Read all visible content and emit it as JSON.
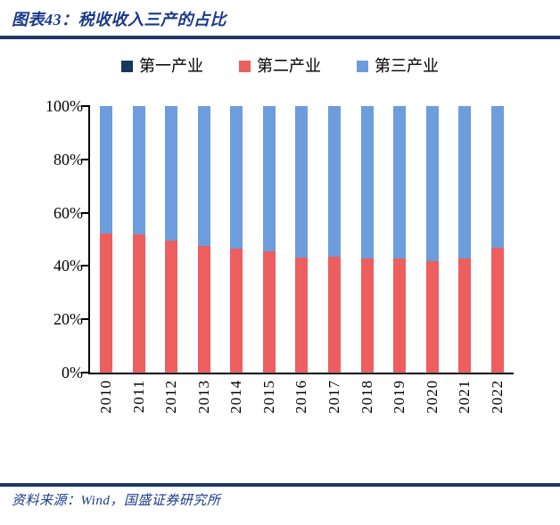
{
  "page": {
    "title": "图表43：税收收入三产的占比",
    "source": "资料来源：Wind，国盛证券研究所"
  },
  "colors": {
    "title_text": "#1b3a8c",
    "rule": "#1f3864",
    "axis": "#000000",
    "primary": "#17375e",
    "secondary": "#ed5e5e",
    "tertiary": "#6d9ddc"
  },
  "legend": {
    "items": [
      {
        "label": "第一产业",
        "color": "#17375e"
      },
      {
        "label": "第二产业",
        "color": "#ed5e5e"
      },
      {
        "label": "第三产业",
        "color": "#6d9ddc"
      }
    ]
  },
  "chart_data": {
    "type": "bar",
    "stacked": true,
    "unit": "percent",
    "title": "税收收入三产的占比",
    "categories": [
      "2010",
      "2011",
      "2012",
      "2013",
      "2014",
      "2015",
      "2016",
      "2017",
      "2018",
      "2019",
      "2020",
      "2021",
      "2022"
    ],
    "series": [
      {
        "name": "第一产业",
        "color": "#17375e",
        "values": [
          0.1,
          0.1,
          0.1,
          0.1,
          0.1,
          0.1,
          0.1,
          0.1,
          0.1,
          0.1,
          0.1,
          0.1,
          0.1
        ]
      },
      {
        "name": "第二产业",
        "color": "#ed5e5e",
        "values": [
          52.2,
          51.9,
          49.5,
          47.3,
          46.4,
          45.3,
          43.2,
          43.5,
          42.6,
          42.8,
          41.6,
          42.8,
          46.8
        ]
      },
      {
        "name": "第三产业",
        "color": "#6d9ddc",
        "values": [
          47.7,
          48.0,
          50.4,
          52.6,
          53.5,
          54.6,
          56.7,
          56.4,
          57.3,
          57.1,
          58.3,
          57.1,
          53.1
        ]
      }
    ],
    "xlabel": "",
    "ylabel": "",
    "ylim": [
      0,
      100
    ],
    "yticks": [
      "0%",
      "20%",
      "40%",
      "60%",
      "80%",
      "100%"
    ],
    "grid": false,
    "legend_position": "top"
  }
}
